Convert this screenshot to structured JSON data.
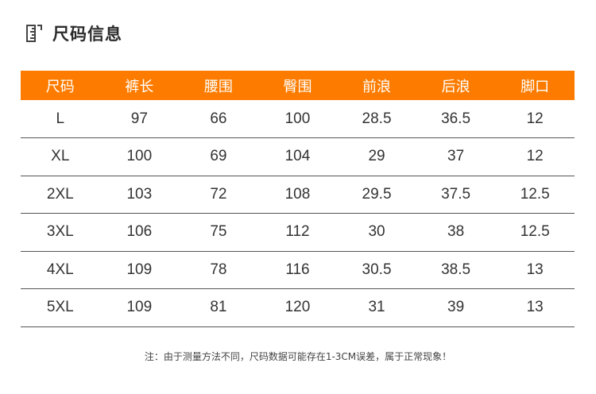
{
  "header": {
    "title": "尺码信息",
    "icon": "ruler-icon"
  },
  "colors": {
    "header_bg": "#fd7c00",
    "header_text": "#ffffff",
    "row_border": "#555555"
  },
  "table": {
    "columns": [
      "尺码",
      "裤长",
      "腰围",
      "臀围",
      "前浪",
      "后浪",
      "脚口"
    ],
    "rows": [
      [
        "L",
        "97",
        "66",
        "100",
        "28.5",
        "36.5",
        "12"
      ],
      [
        "XL",
        "100",
        "69",
        "104",
        "29",
        "37",
        "12"
      ],
      [
        "2XL",
        "103",
        "72",
        "108",
        "29.5",
        "37.5",
        "12.5"
      ],
      [
        "3XL",
        "106",
        "75",
        "112",
        "30",
        "38",
        "12.5"
      ],
      [
        "4XL",
        "109",
        "78",
        "116",
        "30.5",
        "38.5",
        "13"
      ],
      [
        "5XL",
        "109",
        "81",
        "120",
        "31",
        "39",
        "13"
      ]
    ]
  },
  "footer": {
    "note": "注：由于测量方法不同，尺码数据可能存在1-3CM误差，属于正常现象！"
  }
}
